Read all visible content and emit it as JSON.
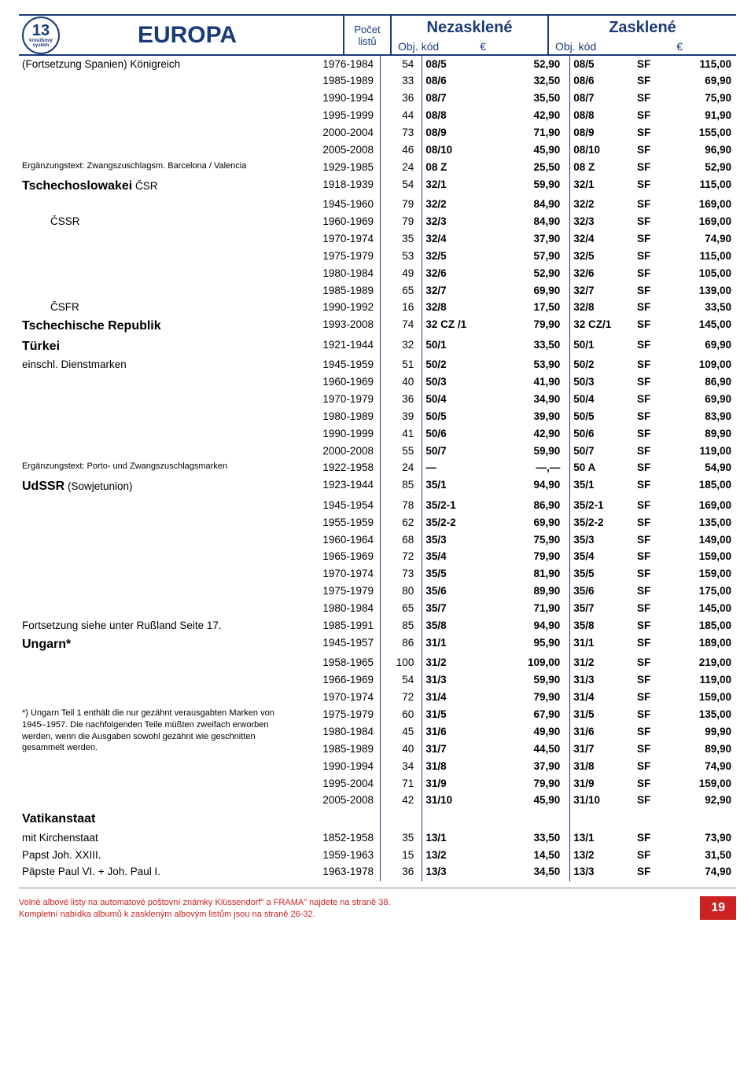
{
  "logo": {
    "num": "13",
    "sub1": "kroužkový",
    "sub2": "systém"
  },
  "title": "EUROPA",
  "col_headers": {
    "count1": "Počet",
    "count2": "listů",
    "nezasklene": "Nezasklené",
    "zasklene": "Zasklené",
    "objkod": "Obj. kód",
    "euro": "€",
    "sf": ""
  },
  "rows": [
    {
      "label": "(Fortsetzung Spanien)  Königreich",
      "cls": "label-normal",
      "years": "1976-1984",
      "count": "54",
      "nk": "08/5",
      "np": "52,90",
      "zk": "08/5",
      "sf": "SF",
      "zp": "115,00"
    },
    {
      "label": "",
      "years": "1985-1989",
      "count": "33",
      "nk": "08/6",
      "np": "32,50",
      "zk": "08/6",
      "sf": "SF",
      "zp": "69,90"
    },
    {
      "label": "",
      "years": "1990-1994",
      "count": "36",
      "nk": "08/7",
      "np": "35,50",
      "zk": "08/7",
      "sf": "SF",
      "zp": "75,90"
    },
    {
      "label": "",
      "years": "1995-1999",
      "count": "44",
      "nk": "08/8",
      "np": "42,90",
      "zk": "08/8",
      "sf": "SF",
      "zp": "91,90"
    },
    {
      "label": "",
      "years": "2000-2004",
      "count": "73",
      "nk": "08/9",
      "np": "71,90",
      "zk": "08/9",
      "sf": "SF",
      "zp": "155,00"
    },
    {
      "label": "",
      "years": "2005-2008",
      "count": "46",
      "nk": "08/10",
      "np": "45,90",
      "zk": "08/10",
      "sf": "SF",
      "zp": "96,90"
    },
    {
      "label": "Ergänzungstext: Zwangszuschlagsm. Barcelona / Valencia",
      "cls": "label-sub",
      "years": "1929-1985",
      "count": "24",
      "nk": "08 Z",
      "np": "25,50",
      "zk": "08 Z",
      "sf": "SF",
      "zp": "52,90"
    },
    {
      "label": "<span class='label-main'>Tschechoslowakei</span> ČSR",
      "cls": "label-normal",
      "years": "1918-1939",
      "count": "54",
      "nk": "32/1",
      "np": "59,90",
      "zk": "32/1",
      "sf": "SF",
      "zp": "115,00"
    },
    {
      "label": "",
      "years": "1945-1960",
      "count": "79",
      "nk": "32/2",
      "np": "84,90",
      "zk": "32/2",
      "sf": "SF",
      "zp": "169,00"
    },
    {
      "label": "ČSSR",
      "cls": "label-normal label-indent",
      "years": "1960-1969",
      "count": "79",
      "nk": "32/3",
      "np": "84,90",
      "zk": "32/3",
      "sf": "SF",
      "zp": "169,00"
    },
    {
      "label": "",
      "years": "1970-1974",
      "count": "35",
      "nk": "32/4",
      "np": "37,90",
      "zk": "32/4",
      "sf": "SF",
      "zp": "74,90"
    },
    {
      "label": "",
      "years": "1975-1979",
      "count": "53",
      "nk": "32/5",
      "np": "57,90",
      "zk": "32/5",
      "sf": "SF",
      "zp": "115,00"
    },
    {
      "label": "",
      "years": "1980-1984",
      "count": "49",
      "nk": "32/6",
      "np": "52,90",
      "zk": "32/6",
      "sf": "SF",
      "zp": "105,00"
    },
    {
      "label": "",
      "years": "1985-1989",
      "count": "65",
      "nk": "32/7",
      "np": "69,90",
      "zk": "32/7",
      "sf": "SF",
      "zp": "139,00"
    },
    {
      "label": "ČSFR",
      "cls": "label-normal label-indent",
      "years": "1990-1992",
      "count": "16",
      "nk": "32/8",
      "np": "17,50",
      "zk": "32/8",
      "sf": "SF",
      "zp": "33,50"
    },
    {
      "label": "Tschechische Republik",
      "cls": "label-main",
      "years": "1993-2008",
      "count": "74",
      "nk": "32 CZ /1",
      "np": "79,90",
      "zk": "32 CZ/1",
      "sf": "SF",
      "zp": "145,00"
    },
    {
      "label": "Türkei",
      "cls": "label-main",
      "years": "1921-1944",
      "count": "32",
      "nk": "50/1",
      "np": "33,50",
      "zk": "50/1",
      "sf": "SF",
      "zp": "69,90"
    },
    {
      "label": "einschl. Dienstmarken",
      "cls": "label-normal",
      "years": "1945-1959",
      "count": "51",
      "nk": "50/2",
      "np": "53,90",
      "zk": "50/2",
      "sf": "SF",
      "zp": "109,00"
    },
    {
      "label": "",
      "years": "1960-1969",
      "count": "40",
      "nk": "50/3",
      "np": "41,90",
      "zk": "50/3",
      "sf": "SF",
      "zp": "86,90"
    },
    {
      "label": "",
      "years": "1970-1979",
      "count": "36",
      "nk": "50/4",
      "np": "34,90",
      "zk": "50/4",
      "sf": "SF",
      "zp": "69,90"
    },
    {
      "label": "",
      "years": "1980-1989",
      "count": "39",
      "nk": "50/5",
      "np": "39,90",
      "zk": "50/5",
      "sf": "SF",
      "zp": "83,90"
    },
    {
      "label": "",
      "years": "1990-1999",
      "count": "41",
      "nk": "50/6",
      "np": "42,90",
      "zk": "50/6",
      "sf": "SF",
      "zp": "89,90"
    },
    {
      "label": "",
      "years": "2000-2008",
      "count": "55",
      "nk": "50/7",
      "np": "59,90",
      "zk": "50/7",
      "sf": "SF",
      "zp": "119,00"
    },
    {
      "label": "Ergänzungstext: Porto- und Zwangszuschlagsmarken",
      "cls": "label-sub",
      "years": "1922-1958",
      "count": "24",
      "nk": "—",
      "np": "—,—",
      "zk": "50 A",
      "sf": "SF",
      "zp": "54,90"
    },
    {
      "label": "<span class='label-main'>UdSSR</span> (Sowjetunion)",
      "cls": "label-normal",
      "years": "1923-1944",
      "count": "85",
      "nk": "35/1",
      "np": "94,90",
      "zk": "35/1",
      "sf": "SF",
      "zp": "185,00"
    },
    {
      "label": "",
      "years": "1945-1954",
      "count": "78",
      "nk": "35/2-1",
      "np": "86,90",
      "zk": "35/2-1",
      "sf": "SF",
      "zp": "169,00"
    },
    {
      "label": "",
      "years": "1955-1959",
      "count": "62",
      "nk": "35/2-2",
      "np": "69,90",
      "zk": "35/2-2",
      "sf": "SF",
      "zp": "135,00"
    },
    {
      "label": "",
      "years": "1960-1964",
      "count": "68",
      "nk": "35/3",
      "np": "75,90",
      "zk": "35/3",
      "sf": "SF",
      "zp": "149,00"
    },
    {
      "label": "",
      "years": "1965-1969",
      "count": "72",
      "nk": "35/4",
      "np": "79,90",
      "zk": "35/4",
      "sf": "SF",
      "zp": "159,00"
    },
    {
      "label": "",
      "years": "1970-1974",
      "count": "73",
      "nk": "35/5",
      "np": "81,90",
      "zk": "35/5",
      "sf": "SF",
      "zp": "159,00"
    },
    {
      "label": "",
      "years": "1975-1979",
      "count": "80",
      "nk": "35/6",
      "np": "89,90",
      "zk": "35/6",
      "sf": "SF",
      "zp": "175,00"
    },
    {
      "label": "",
      "years": "1980-1984",
      "count": "65",
      "nk": "35/7",
      "np": "71,90",
      "zk": "35/7",
      "sf": "SF",
      "zp": "145,00"
    },
    {
      "label": "Fortsetzung siehe unter Rußland Seite 17.",
      "cls": "label-normal",
      "years": "1985-1991",
      "count": "85",
      "nk": "35/8",
      "np": "94,90",
      "zk": "35/8",
      "sf": "SF",
      "zp": "185,00"
    },
    {
      "label": "Ungarn*",
      "cls": "label-main",
      "years": "1945-1957",
      "count": "86",
      "nk": "31/1",
      "np": "95,90",
      "zk": "31/1",
      "sf": "SF",
      "zp": "189,00"
    },
    {
      "label": "",
      "years": "1958-1965",
      "count": "100",
      "nk": "31/2",
      "np": "109,00",
      "zk": "31/2",
      "sf": "SF",
      "zp": "219,00"
    },
    {
      "label": "",
      "years": "1966-1969",
      "count": "54",
      "nk": "31/3",
      "np": "59,90",
      "zk": "31/3",
      "sf": "SF",
      "zp": "119,00"
    },
    {
      "label": "",
      "years": "1970-1974",
      "count": "72",
      "nk": "31/4",
      "np": "79,90",
      "zk": "31/4",
      "sf": "SF",
      "zp": "159,00"
    },
    {
      "label": "FOOTNOTE_START",
      "years": "1975-1979",
      "count": "60",
      "nk": "31/5",
      "np": "67,90",
      "zk": "31/5",
      "sf": "SF",
      "zp": "135,00"
    },
    {
      "label": "",
      "years": "1980-1984",
      "count": "45",
      "nk": "31/6",
      "np": "49,90",
      "zk": "31/6",
      "sf": "SF",
      "zp": "99,90"
    },
    {
      "label": "",
      "years": "1985-1989",
      "count": "40",
      "nk": "31/7",
      "np": "44,50",
      "zk": "31/7",
      "sf": "SF",
      "zp": "89,90"
    },
    {
      "label": "",
      "years": "1990-1994",
      "count": "34",
      "nk": "31/8",
      "np": "37,90",
      "zk": "31/8",
      "sf": "SF",
      "zp": "74,90"
    },
    {
      "label": "",
      "years": "1995-2004",
      "count": "71",
      "nk": "31/9",
      "np": "79,90",
      "zk": "31/9",
      "sf": "SF",
      "zp": "159,00"
    },
    {
      "label": "",
      "years": "2005-2008",
      "count": "42",
      "nk": "31/10",
      "np": "45,90",
      "zk": "31/10",
      "sf": "SF",
      "zp": "92,90"
    },
    {
      "label": "Vatikanstaat",
      "cls": "label-main",
      "blank": true
    },
    {
      "label": "mit Kirchenstaat",
      "cls": "label-normal",
      "years": "1852-1958",
      "count": "35",
      "nk": "13/1",
      "np": "33,50",
      "zk": "13/1",
      "sf": "SF",
      "zp": "73,90"
    },
    {
      "label": "Papst Joh. XXIII.",
      "cls": "label-normal",
      "years": "1959-1963",
      "count": "15",
      "nk": "13/2",
      "np": "14,50",
      "zk": "13/2",
      "sf": "SF",
      "zp": "31,50"
    },
    {
      "label": "Päpste Paul VI. + Joh. Paul I.",
      "cls": "label-normal",
      "years": "1963-1978",
      "count": "36",
      "nk": "13/3",
      "np": "34,50",
      "zk": "13/3",
      "sf": "SF",
      "zp": "74,90"
    }
  ],
  "footnote": "*) Ungarn Teil 1 enthält die nur gezähnt verausgabten Marken von 1945–1957. Die nachfolgenden Teile müßten zweifach erworben werden, wenn die Ausgaben sowohl gezähnt wie geschnitten gesammelt werden.",
  "footer1": "Volné albové listy na automatové poštovní známky Klüssendorf\" a FRAMA\" najdete na straně 38.",
  "footer2": "Kompletní nabídka albumů k zaskleným albovým listům jsou na straně 26-32.",
  "page_num": "19"
}
